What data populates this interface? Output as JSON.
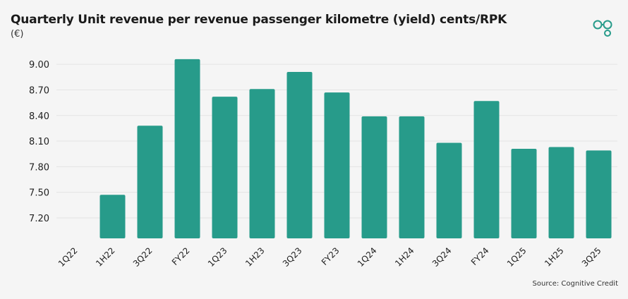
{
  "chart_data": {
    "type": "bar",
    "title": "Quarterly Unit revenue per revenue passenger kilometre (yield) cents/RPK",
    "subtitle": "(€)",
    "xlabel": "",
    "ylabel": "",
    "categories": [
      "1Q22",
      "1H22",
      "3Q22",
      "FY22",
      "1Q23",
      "1H23",
      "3Q23",
      "FY23",
      "1Q24",
      "1H24",
      "3Q24",
      "FY24",
      "1Q25",
      "1H25",
      "3Q25"
    ],
    "values": [
      null,
      7.47,
      8.28,
      9.06,
      8.62,
      8.71,
      8.91,
      8.67,
      8.39,
      8.39,
      8.08,
      8.57,
      8.01,
      8.03,
      7.99
    ],
    "yticks": [
      "7.20",
      "7.50",
      "7.80",
      "8.10",
      "8.40",
      "8.70",
      "9.00"
    ],
    "ylim": [
      6.96,
      9.1
    ],
    "grid": true,
    "bar_color": "#279b8a",
    "source": "Source: Cognitive Credit"
  },
  "logo": {
    "icon": "cognitive-credit-logo-icon",
    "color": "#279b8a"
  }
}
